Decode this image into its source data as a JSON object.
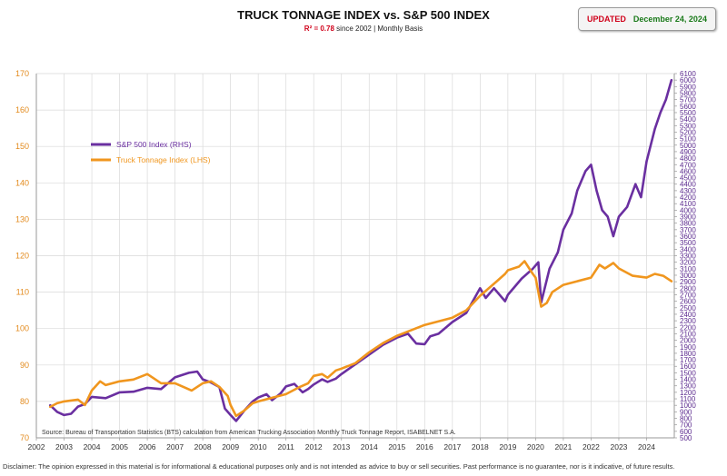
{
  "header": {
    "title": "TRUCK TONNAGE INDEX vs. S&P 500 INDEX",
    "subtitle_r2": "R² = 0.78",
    "subtitle_rest": " since 2002 | Monthly Basis",
    "updated_label": "UPDATED",
    "updated_date": "December 24, 2024"
  },
  "source": "Source: Bureau of Transportation Statistics (BTS) calculation from American Trucking Association Monthly Truck Tonnage Report, ISABELNET S.A.",
  "disclaimer": "Disclaimer: The opinion expressed in this material is for informational & educational purposes only and is not intended as advice to buy or sell securities. Past performance is no guarantee, nor is it indicative, of future results.",
  "colors": {
    "sp500": "#6a2fa0",
    "tonnage": "#f0961e",
    "grid": "#d9d9d9"
  },
  "chart_data": {
    "type": "line",
    "title": "TRUCK TONNAGE INDEX vs. S&P 500 INDEX",
    "xlim": [
      2002,
      2025
    ],
    "x_ticks": [
      2002,
      2003,
      2004,
      2005,
      2006,
      2007,
      2008,
      2009,
      2010,
      2011,
      2012,
      2013,
      2014,
      2015,
      2016,
      2017,
      2018,
      2019,
      2020,
      2021,
      2022,
      2023,
      2024
    ],
    "y_left": {
      "label": "Truck Tonnage Index (LHS)",
      "lim": [
        70,
        170
      ],
      "ticks": [
        70,
        80,
        90,
        100,
        110,
        120,
        130,
        140,
        150,
        160,
        170
      ]
    },
    "y_right": {
      "label": "S&P 500 Index (RHS)",
      "lim": [
        500,
        6100
      ],
      "ticks": [
        500,
        600,
        700,
        800,
        900,
        1000,
        1100,
        1200,
        1300,
        1400,
        1500,
        1600,
        1700,
        1800,
        1900,
        2000,
        2100,
        2200,
        2300,
        2400,
        2500,
        2600,
        2700,
        2800,
        2900,
        3000,
        3100,
        3200,
        3300,
        3400,
        3500,
        3600,
        3700,
        3800,
        3900,
        4000,
        4100,
        4200,
        4300,
        4400,
        4500,
        4600,
        4700,
        4800,
        4900,
        5000,
        5100,
        5200,
        5300,
        5400,
        5500,
        5600,
        5700,
        5800,
        5900,
        6000,
        6100
      ]
    },
    "grid": true,
    "legend_position": "upper-left",
    "series": [
      {
        "name": "S&P 500 Index (RHS)",
        "axis": "right",
        "x": [
          2002.5,
          2002.75,
          2003.0,
          2003.25,
          2003.5,
          2003.75,
          2004.0,
          2004.5,
          2005.0,
          2005.5,
          2006.0,
          2006.5,
          2007.0,
          2007.5,
          2007.8,
          2008.0,
          2008.3,
          2008.6,
          2008.8,
          2009.0,
          2009.2,
          2009.5,
          2009.8,
          2010.0,
          2010.3,
          2010.5,
          2010.8,
          2011.0,
          2011.3,
          2011.6,
          2011.8,
          2012.0,
          2012.3,
          2012.5,
          2012.8,
          2013.0,
          2013.5,
          2014.0,
          2014.5,
          2015.0,
          2015.4,
          2015.7,
          2016.0,
          2016.2,
          2016.5,
          2017.0,
          2017.5,
          2018.0,
          2018.2,
          2018.5,
          2018.9,
          2019.0,
          2019.5,
          2019.9,
          2020.1,
          2020.2,
          2020.5,
          2020.8,
          2021.0,
          2021.3,
          2021.5,
          2021.8,
          2022.0,
          2022.2,
          2022.4,
          2022.6,
          2022.8,
          2023.0,
          2023.3,
          2023.6,
          2023.8,
          2024.0,
          2024.3,
          2024.5,
          2024.7,
          2024.9
        ],
        "values": [
          1000,
          900,
          850,
          870,
          980,
          1020,
          1130,
          1110,
          1200,
          1210,
          1270,
          1250,
          1430,
          1500,
          1520,
          1400,
          1350,
          1280,
          950,
          850,
          760,
          920,
          1060,
          1120,
          1170,
          1080,
          1180,
          1290,
          1330,
          1200,
          1250,
          1320,
          1400,
          1360,
          1410,
          1480,
          1630,
          1780,
          1930,
          2040,
          2100,
          1950,
          1940,
          2060,
          2100,
          2280,
          2420,
          2800,
          2650,
          2800,
          2600,
          2700,
          2950,
          3100,
          3200,
          2580,
          3100,
          3350,
          3700,
          3950,
          4300,
          4600,
          4700,
          4300,
          4000,
          3900,
          3600,
          3900,
          4050,
          4400,
          4200,
          4750,
          5250,
          5500,
          5700,
          6000
        ]
      },
      {
        "name": "Truck Tonnage Index (LHS)",
        "axis": "left",
        "x": [
          2002.5,
          2002.75,
          2003.0,
          2003.5,
          2003.75,
          2004.0,
          2004.3,
          2004.5,
          2005.0,
          2005.5,
          2006.0,
          2006.2,
          2006.5,
          2007.0,
          2007.3,
          2007.6,
          2008.0,
          2008.3,
          2008.6,
          2008.9,
          2009.0,
          2009.2,
          2009.5,
          2009.8,
          2010.0,
          2010.5,
          2011.0,
          2011.5,
          2011.8,
          2012.0,
          2012.3,
          2012.5,
          2012.8,
          2013.0,
          2013.5,
          2014.0,
          2014.5,
          2015.0,
          2015.5,
          2016.0,
          2016.5,
          2017.0,
          2017.5,
          2018.0,
          2018.3,
          2018.6,
          2018.9,
          2019.0,
          2019.4,
          2019.6,
          2019.9,
          2020.0,
          2020.2,
          2020.4,
          2020.6,
          2021.0,
          2021.5,
          2022.0,
          2022.3,
          2022.5,
          2022.8,
          2023.0,
          2023.5,
          2024.0,
          2024.3,
          2024.6,
          2024.9
        ],
        "values": [
          78.5,
          79.5,
          80.0,
          80.5,
          79.0,
          83.0,
          85.5,
          84.5,
          85.5,
          86.0,
          87.5,
          86.5,
          85.0,
          85.0,
          84.0,
          83.0,
          85.0,
          85.5,
          84.0,
          81.5,
          79.0,
          76.0,
          77.5,
          79.5,
          80.0,
          81.0,
          82.0,
          84.0,
          85.0,
          87.0,
          87.5,
          86.5,
          88.5,
          89.0,
          90.5,
          93.5,
          96.0,
          98.0,
          99.5,
          101.0,
          102.0,
          103.0,
          105.0,
          109.0,
          111.0,
          113.0,
          115.0,
          116.0,
          117.0,
          118.5,
          115.0,
          114.0,
          106.0,
          107.0,
          110.0,
          112.0,
          113.0,
          114.0,
          117.5,
          116.5,
          118.0,
          116.5,
          114.5,
          114.0,
          115.0,
          114.5,
          113.0
        ]
      }
    ]
  }
}
